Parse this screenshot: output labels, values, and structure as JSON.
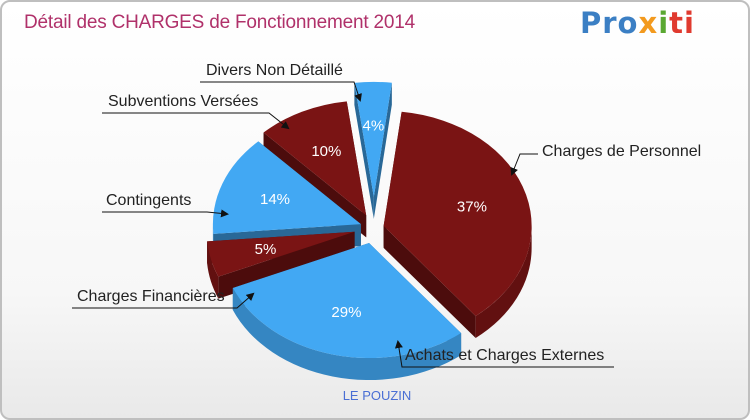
{
  "title": "Détail des CHARGES de Fonctionnement 2014",
  "logo": {
    "p1": "Pro",
    "p2": "x",
    "p3": "i",
    "p4": "ti"
  },
  "subtitle": "LE POUZIN",
  "colors": {
    "dark": "#7a1414",
    "light": "#42a8f3",
    "title": "#b0316a",
    "subtitle": "#4a6fd4"
  },
  "chart_data": {
    "type": "pie",
    "title": "Détail des CHARGES de Fonctionnement 2014",
    "slices": [
      {
        "label": "Charges de Personnel",
        "value": 37,
        "value_label": "37%",
        "color": "#7a1414"
      },
      {
        "label": "Achats et Charges Externes",
        "value": 29,
        "value_label": "29%",
        "color": "#42a8f3"
      },
      {
        "label": "Charges Financières",
        "value": 5,
        "value_label": "5%",
        "color": "#7a1414"
      },
      {
        "label": "Contingents",
        "value": 14,
        "value_label": "14%",
        "color": "#42a8f3"
      },
      {
        "label": "Subventions Versées",
        "value": 10,
        "value_label": "10%",
        "color": "#7a1414"
      },
      {
        "label": "Divers Non Détaillé",
        "value": 4,
        "value_label": "4%",
        "color": "#42a8f3"
      }
    ]
  }
}
